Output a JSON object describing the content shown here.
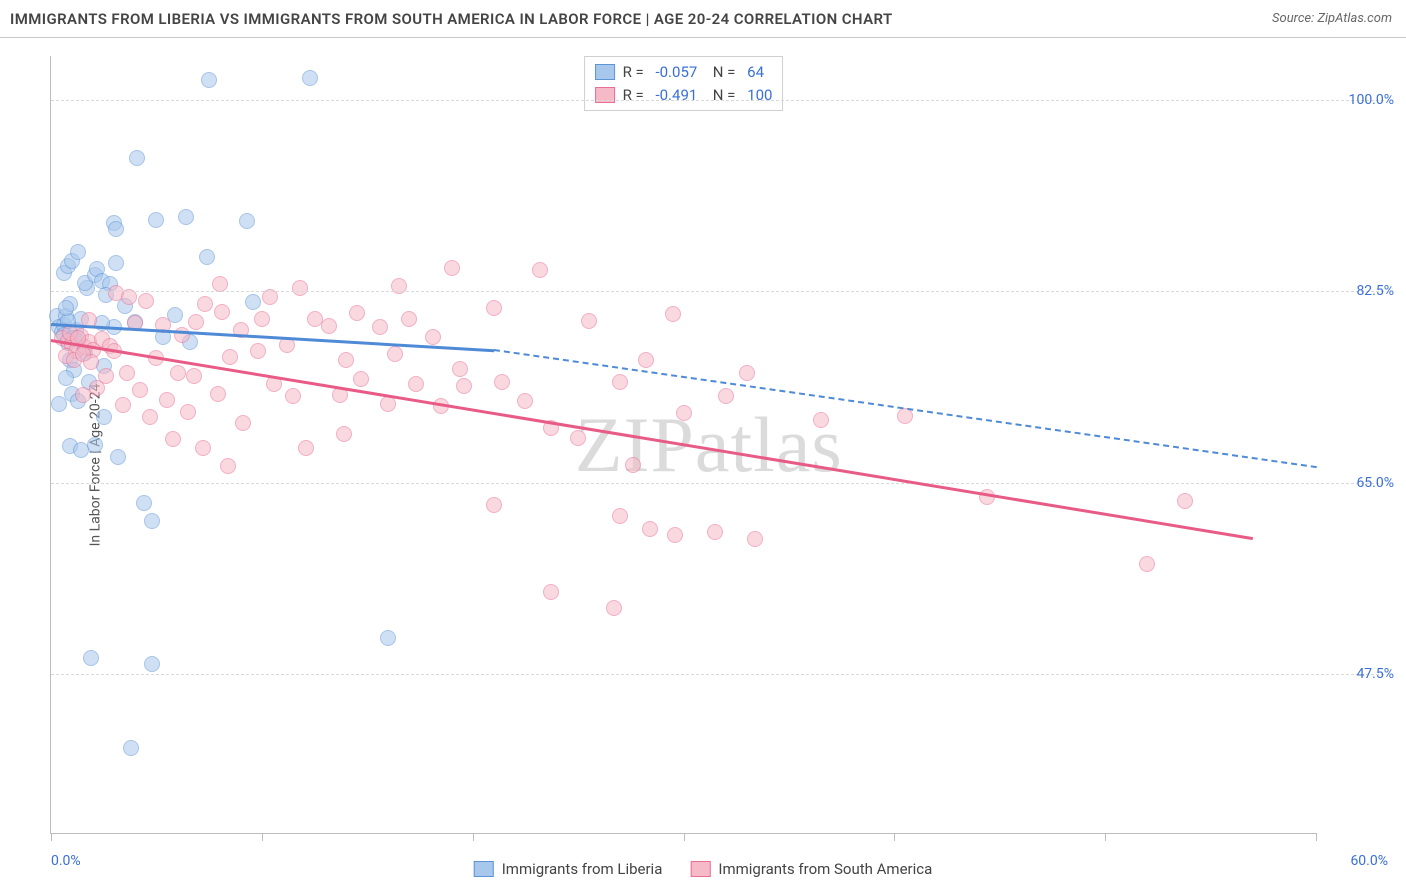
{
  "header": {
    "title": "IMMIGRANTS FROM LIBERIA VS IMMIGRANTS FROM SOUTH AMERICA IN LABOR FORCE | AGE 20-24 CORRELATION CHART",
    "source_prefix": "Source: ",
    "source_link": "ZipAtlas.com"
  },
  "watermark": "ZIPatlas",
  "chart": {
    "type": "scatter",
    "background_color": "#ffffff",
    "grid_color": "#d9d9d9",
    "axis_color": "#bdbdbd",
    "y_axis_label": "In Labor Force | Age 20-24",
    "axis_label_color": "#555555",
    "tick_label_color": "#3a6fd8",
    "tick_fontsize": 14,
    "xlim": [
      0,
      60
    ],
    "ylim": [
      33,
      104
    ],
    "x_ticks": [
      0,
      10,
      20,
      30,
      40,
      50,
      60
    ],
    "x_tick_labels": {
      "left": "0.0%",
      "right": "60.0%"
    },
    "y_gridlines": [
      47.5,
      65.0,
      82.5,
      100.0
    ],
    "y_tick_labels": [
      "47.5%",
      "65.0%",
      "82.5%",
      "100.0%"
    ],
    "marker_radius": 8,
    "marker_opacity": 0.55,
    "series": [
      {
        "name": "Immigrants from Liberia",
        "fill": "#a8c7ec",
        "stroke": "#5e95d6",
        "legend": {
          "R": "-0.057",
          "N": "64"
        },
        "trend": {
          "x1": 0,
          "y1": 79.6,
          "x2_solid": 21,
          "y2_solid": 77.2,
          "x2_dash": 60,
          "y2_dash": 66.5,
          "color": "#4f8ad6"
        },
        "points": [
          [
            0.3,
            80.2
          ],
          [
            0.4,
            79.2
          ],
          [
            0.5,
            78.8
          ],
          [
            0.6,
            79.4
          ],
          [
            0.7,
            80.2
          ],
          [
            0.8,
            77.8
          ],
          [
            0.9,
            81.3
          ],
          [
            1.0,
            78.2
          ],
          [
            1.2,
            79.0
          ],
          [
            1.3,
            78.0
          ],
          [
            1.4,
            80.0
          ],
          [
            0.6,
            78.5
          ],
          [
            0.8,
            79.8
          ],
          [
            1.1,
            78.2
          ],
          [
            0.7,
            81.0
          ],
          [
            1.7,
            82.8
          ],
          [
            1.6,
            83.3
          ],
          [
            2.1,
            84.0
          ],
          [
            2.2,
            84.5
          ],
          [
            2.4,
            83.4
          ],
          [
            2.8,
            83.2
          ],
          [
            3.1,
            85.1
          ],
          [
            2.6,
            82.2
          ],
          [
            4.1,
            94.7
          ],
          [
            3.0,
            88.7
          ],
          [
            3.1,
            88.2
          ],
          [
            5.0,
            89.0
          ],
          [
            6.4,
            89.3
          ],
          [
            9.3,
            88.9
          ],
          [
            7.5,
            101.8
          ],
          [
            12.3,
            102.0
          ],
          [
            1.0,
            73.1
          ],
          [
            1.3,
            72.5
          ],
          [
            1.8,
            74.2
          ],
          [
            2.5,
            71.0
          ],
          [
            0.9,
            68.4
          ],
          [
            1.4,
            68.0
          ],
          [
            2.1,
            68.5
          ],
          [
            3.2,
            67.4
          ],
          [
            4.4,
            63.2
          ],
          [
            4.8,
            61.5
          ],
          [
            1.9,
            49.0
          ],
          [
            4.8,
            48.4
          ],
          [
            3.8,
            40.8
          ],
          [
            7.4,
            85.6
          ],
          [
            9.6,
            81.5
          ],
          [
            16.0,
            50.8
          ],
          [
            5.3,
            78.3
          ],
          [
            5.9,
            80.3
          ],
          [
            6.6,
            77.9
          ],
          [
            0.6,
            84.2
          ],
          [
            0.8,
            84.8
          ],
          [
            1.0,
            85.3
          ],
          [
            1.3,
            86.1
          ],
          [
            3.5,
            81.2
          ],
          [
            4.0,
            79.7
          ],
          [
            3.0,
            79.2
          ],
          [
            2.4,
            79.6
          ],
          [
            0.4,
            72.2
          ],
          [
            0.9,
            76.2
          ],
          [
            1.1,
            75.3
          ],
          [
            1.6,
            76.9
          ],
          [
            2.5,
            75.7
          ],
          [
            0.7,
            74.6
          ]
        ]
      },
      {
        "name": "Immigrants from South America",
        "fill": "#f5b9c8",
        "stroke": "#e96f94",
        "legend": {
          "R": "-0.491",
          "N": "100"
        },
        "trend": {
          "x1": 0,
          "y1": 78.1,
          "x2_solid": 57,
          "y2_solid": 60.0,
          "x2_dash": 57,
          "y2_dash": 60.0,
          "color": "#e85b86"
        },
        "points": [
          [
            0.5,
            78.2
          ],
          [
            0.8,
            78.0
          ],
          [
            1.0,
            77.7
          ],
          [
            1.2,
            77.0
          ],
          [
            1.4,
            78.4
          ],
          [
            1.6,
            77.4
          ],
          [
            1.8,
            77.9
          ],
          [
            2.0,
            77.1
          ],
          [
            0.7,
            76.6
          ],
          [
            1.1,
            76.2
          ],
          [
            1.5,
            76.8
          ],
          [
            1.9,
            76.0
          ],
          [
            0.9,
            78.7
          ],
          [
            1.3,
            78.2
          ],
          [
            1.8,
            79.9
          ],
          [
            2.4,
            78.1
          ],
          [
            2.8,
            77.5
          ],
          [
            3.0,
            77.0
          ],
          [
            3.6,
            75.0
          ],
          [
            4.0,
            79.6
          ],
          [
            5.3,
            79.4
          ],
          [
            6.2,
            78.5
          ],
          [
            6.9,
            79.7
          ],
          [
            7.3,
            81.3
          ],
          [
            8.1,
            80.6
          ],
          [
            3.1,
            82.3
          ],
          [
            3.7,
            82.0
          ],
          [
            4.5,
            81.6
          ],
          [
            9.0,
            79.0
          ],
          [
            10.0,
            80.0
          ],
          [
            11.2,
            77.6
          ],
          [
            12.5,
            80.0
          ],
          [
            13.2,
            79.3
          ],
          [
            14.5,
            80.5
          ],
          [
            15.6,
            79.2
          ],
          [
            14.0,
            76.2
          ],
          [
            16.3,
            76.8
          ],
          [
            17.0,
            80.0
          ],
          [
            18.1,
            78.3
          ],
          [
            19.4,
            75.4
          ],
          [
            11.5,
            72.9
          ],
          [
            13.7,
            73.0
          ],
          [
            14.7,
            74.5
          ],
          [
            16.0,
            72.2
          ],
          [
            17.3,
            74.0
          ],
          [
            18.5,
            72.0
          ],
          [
            19.6,
            73.8
          ],
          [
            21.4,
            74.2
          ],
          [
            19.0,
            84.6
          ],
          [
            23.2,
            84.4
          ],
          [
            21.0,
            81.0
          ],
          [
            22.5,
            72.5
          ],
          [
            23.7,
            70.0
          ],
          [
            25.5,
            79.8
          ],
          [
            27.0,
            74.2
          ],
          [
            28.2,
            76.2
          ],
          [
            29.5,
            80.4
          ],
          [
            25.0,
            69.1
          ],
          [
            27.6,
            66.6
          ],
          [
            27.0,
            62.0
          ],
          [
            28.4,
            60.8
          ],
          [
            29.6,
            60.2
          ],
          [
            23.7,
            55.0
          ],
          [
            26.7,
            53.6
          ],
          [
            21.0,
            63.0
          ],
          [
            30.0,
            71.4
          ],
          [
            32.0,
            72.9
          ],
          [
            33.0,
            75.0
          ],
          [
            31.5,
            60.5
          ],
          [
            33.4,
            59.9
          ],
          [
            4.2,
            73.5
          ],
          [
            5.5,
            72.6
          ],
          [
            6.8,
            74.8
          ],
          [
            7.9,
            73.1
          ],
          [
            9.1,
            70.5
          ],
          [
            10.6,
            74.0
          ],
          [
            5.0,
            76.4
          ],
          [
            6.0,
            75.0
          ],
          [
            8.5,
            76.5
          ],
          [
            9.8,
            77.0
          ],
          [
            2.6,
            74.8
          ],
          [
            3.4,
            72.1
          ],
          [
            4.7,
            71.0
          ],
          [
            1.5,
            73.0
          ],
          [
            2.2,
            73.7
          ],
          [
            36.5,
            70.7
          ],
          [
            40.5,
            71.1
          ],
          [
            44.4,
            63.7
          ],
          [
            53.8,
            63.3
          ],
          [
            52.0,
            57.6
          ],
          [
            8.0,
            83.2
          ],
          [
            10.4,
            82.0
          ],
          [
            11.8,
            82.8
          ],
          [
            16.5,
            83.0
          ],
          [
            5.8,
            69.0
          ],
          [
            7.2,
            68.2
          ],
          [
            8.4,
            66.5
          ],
          [
            6.5,
            71.5
          ],
          [
            12.1,
            68.2
          ],
          [
            13.9,
            69.5
          ]
        ]
      }
    ]
  },
  "bottom_legend": [
    {
      "label": "Immigrants from Liberia",
      "fill": "#a8c7ec",
      "stroke": "#5e95d6"
    },
    {
      "label": "Immigrants from South America",
      "fill": "#f5b9c8",
      "stroke": "#e96f94"
    }
  ]
}
